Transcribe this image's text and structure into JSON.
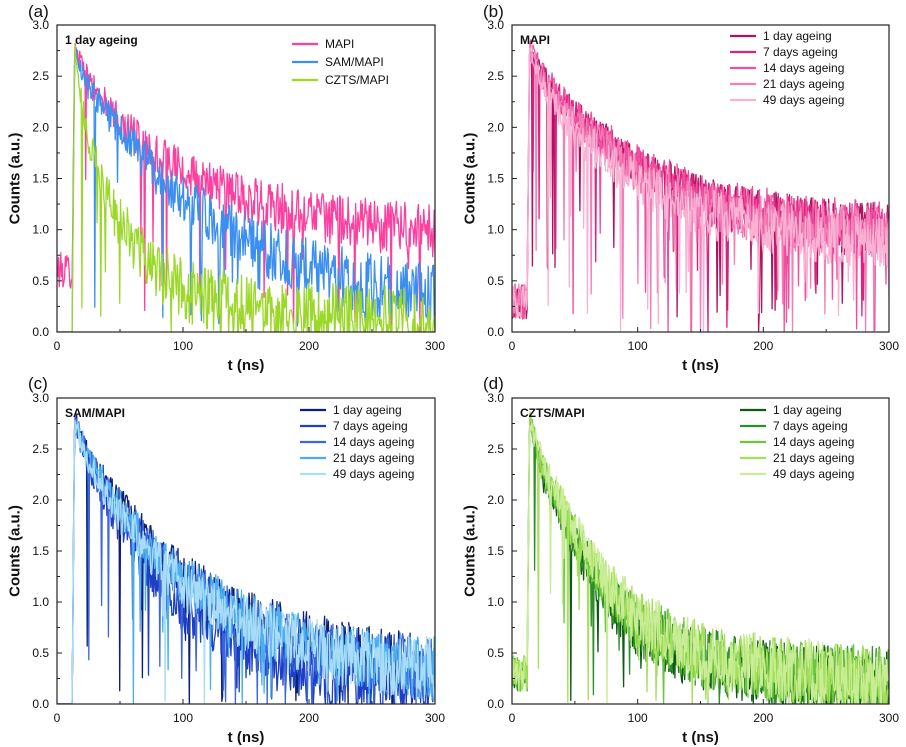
{
  "chart_data": [
    {
      "panel": "(a)",
      "type": "line",
      "inset_title": "1 day ageing",
      "xlabel": "t (ns)",
      "ylabel": "Counts (a.u.)",
      "xlim": [
        0,
        300
      ],
      "ylim": [
        0,
        3.0
      ],
      "xticks": [
        "0",
        "100",
        "200",
        "300"
      ],
      "yticks": [
        "0.0",
        "0.5",
        "1.0",
        "1.5",
        "2.0",
        "2.5",
        "3.0"
      ],
      "legend_position": "top-right",
      "series": [
        {
          "name": "MAPI",
          "color": "#ff3f9f",
          "x": [
            0,
            12,
            14,
            25,
            50,
            75,
            100,
            150,
            200,
            250,
            300
          ],
          "y": [
            0.6,
            0.6,
            2.78,
            2.45,
            2.05,
            1.78,
            1.57,
            1.3,
            1.14,
            1.04,
            0.98
          ]
        },
        {
          "name": "SAM/MAPI",
          "color": "#3a8ff0",
          "x": [
            0,
            12,
            14,
            25,
            50,
            75,
            100,
            150,
            200,
            250,
            300
          ],
          "y": [
            0.0,
            0.0,
            2.78,
            2.4,
            1.95,
            1.6,
            1.3,
            0.9,
            0.62,
            0.45,
            0.35
          ]
        },
        {
          "name": "CZTS/MAPI",
          "color": "#9bd82a",
          "x": [
            0,
            12,
            14,
            20,
            30,
            50,
            75,
            100,
            150,
            200,
            250,
            300
          ],
          "y": [
            0.0,
            0.0,
            2.78,
            2.2,
            1.65,
            1.05,
            0.65,
            0.42,
            0.22,
            0.15,
            0.12,
            0.1
          ]
        }
      ]
    },
    {
      "panel": "(b)",
      "type": "line",
      "inset_title": "MAPI",
      "xlabel": "t (ns)",
      "ylabel": "Counts (a.u.)",
      "xlim": [
        0,
        300
      ],
      "ylim": [
        0,
        3.0
      ],
      "xticks": [
        "0",
        "100",
        "200",
        "300"
      ],
      "yticks": [
        "0.0",
        "0.5",
        "1.0",
        "1.5",
        "2.0",
        "2.5",
        "3.0"
      ],
      "legend_position": "top-right",
      "series": [
        {
          "name": "1 day ageing",
          "color": "#b0125f",
          "x": [
            0,
            12,
            14,
            25,
            50,
            100,
            150,
            200,
            250,
            300
          ],
          "y": [
            0.3,
            0.3,
            2.78,
            2.5,
            2.1,
            1.6,
            1.3,
            1.15,
            1.05,
            1.0
          ]
        },
        {
          "name": "7 days ageing",
          "color": "#e0207f",
          "x": [
            0,
            12,
            14,
            25,
            50,
            100,
            150,
            200,
            250,
            300
          ],
          "y": [
            0.3,
            0.3,
            2.78,
            2.48,
            2.08,
            1.58,
            1.28,
            1.13,
            1.03,
            0.98
          ]
        },
        {
          "name": "14 days ageing",
          "color": "#ef4f9f",
          "x": [
            0,
            12,
            14,
            25,
            50,
            100,
            150,
            200,
            250,
            300
          ],
          "y": [
            0.3,
            0.3,
            2.78,
            2.5,
            2.12,
            1.62,
            1.32,
            1.17,
            1.07,
            1.01
          ]
        },
        {
          "name": "21 days ageing",
          "color": "#f57eb8",
          "x": [
            0,
            12,
            14,
            25,
            50,
            100,
            150,
            200,
            250,
            300
          ],
          "y": [
            0.3,
            0.3,
            2.78,
            2.45,
            2.05,
            1.55,
            1.25,
            1.1,
            1.0,
            0.95
          ]
        },
        {
          "name": "49 days ageing",
          "color": "#f9b2d4",
          "x": [
            0,
            12,
            14,
            25,
            50,
            100,
            150,
            200,
            250,
            300
          ],
          "y": [
            0.3,
            0.3,
            2.78,
            2.4,
            1.95,
            1.45,
            1.17,
            1.02,
            0.93,
            0.88
          ]
        }
      ]
    },
    {
      "panel": "(c)",
      "type": "line",
      "inset_title": "SAM/MAPI",
      "xlabel": "t (ns)",
      "ylabel": "Counts (a.u.)",
      "xlim": [
        0,
        300
      ],
      "ylim": [
        0,
        3.0
      ],
      "xticks": [
        "0",
        "100",
        "200",
        "300"
      ],
      "yticks": [
        "0.0",
        "0.5",
        "1.0",
        "1.5",
        "2.0",
        "2.5",
        "3.0"
      ],
      "legend_position": "top-right",
      "series": [
        {
          "name": "1 day ageing",
          "color": "#0b1f7a",
          "x": [
            0,
            12,
            14,
            25,
            50,
            75,
            100,
            150,
            200,
            250,
            300
          ],
          "y": [
            0.0,
            0.0,
            2.78,
            2.4,
            1.95,
            1.55,
            1.25,
            0.85,
            0.6,
            0.45,
            0.35
          ]
        },
        {
          "name": "7 days ageing",
          "color": "#1c3fc4",
          "x": [
            0,
            12,
            14,
            25,
            50,
            75,
            100,
            150,
            200,
            250,
            300
          ],
          "y": [
            0.0,
            0.0,
            2.78,
            2.3,
            1.75,
            1.3,
            0.95,
            0.55,
            0.3,
            0.2,
            0.15
          ]
        },
        {
          "name": "14 days ageing",
          "color": "#3a66e0",
          "x": [
            0,
            12,
            14,
            25,
            50,
            75,
            100,
            150,
            200,
            250,
            300
          ],
          "y": [
            0.0,
            0.0,
            2.78,
            2.38,
            1.9,
            1.5,
            1.2,
            0.8,
            0.55,
            0.42,
            0.33
          ]
        },
        {
          "name": "21 days ageing",
          "color": "#4aaef0",
          "x": [
            0,
            12,
            14,
            25,
            50,
            75,
            100,
            150,
            200,
            250,
            300
          ],
          "y": [
            0.0,
            0.0,
            2.78,
            2.4,
            1.93,
            1.53,
            1.22,
            0.82,
            0.58,
            0.44,
            0.34
          ]
        },
        {
          "name": "49 days ageing",
          "color": "#a8dcf7",
          "x": [
            0,
            12,
            14,
            25,
            50,
            75,
            100,
            150,
            200,
            250,
            300
          ],
          "y": [
            0.0,
            0.0,
            2.78,
            2.35,
            1.85,
            1.45,
            1.15,
            0.78,
            0.55,
            0.42,
            0.33
          ]
        }
      ]
    },
    {
      "panel": "(d)",
      "type": "line",
      "inset_title": "CZTS/MAPI",
      "xlabel": "t (ns)",
      "ylabel": "Counts (a.u.)",
      "xlim": [
        0,
        300
      ],
      "ylim": [
        0,
        3.0
      ],
      "xticks": [
        "0",
        "100",
        "200",
        "300"
      ],
      "yticks": [
        "0.0",
        "0.5",
        "1.0",
        "1.5",
        "2.0",
        "2.5",
        "3.0"
      ],
      "legend_position": "top-right",
      "series": [
        {
          "name": "1 day ageing",
          "color": "#0d5a12",
          "x": [
            0,
            12,
            14,
            25,
            50,
            75,
            100,
            150,
            200,
            250,
            300
          ],
          "y": [
            0.3,
            0.3,
            2.78,
            2.2,
            1.55,
            1.05,
            0.72,
            0.42,
            0.3,
            0.25,
            0.22
          ]
        },
        {
          "name": "7 days ageing",
          "color": "#2e8f2a",
          "x": [
            0,
            12,
            14,
            25,
            50,
            75,
            100,
            150,
            200,
            250,
            300
          ],
          "y": [
            0.3,
            0.3,
            2.78,
            2.25,
            1.6,
            1.1,
            0.76,
            0.45,
            0.32,
            0.26,
            0.23
          ]
        },
        {
          "name": "14 days ageing",
          "color": "#6cc63a",
          "x": [
            0,
            12,
            14,
            25,
            50,
            75,
            100,
            150,
            200,
            250,
            300
          ],
          "y": [
            0.3,
            0.3,
            2.78,
            2.28,
            1.65,
            1.15,
            0.8,
            0.48,
            0.34,
            0.28,
            0.24
          ]
        },
        {
          "name": "21 days ageing",
          "color": "#a4e05a",
          "x": [
            0,
            12,
            14,
            25,
            50,
            75,
            100,
            150,
            200,
            250,
            300
          ],
          "y": [
            0.3,
            0.3,
            2.78,
            2.3,
            1.68,
            1.18,
            0.82,
            0.5,
            0.36,
            0.29,
            0.25
          ]
        },
        {
          "name": "49 days ageing",
          "color": "#c9ec96",
          "x": [
            0,
            12,
            14,
            25,
            50,
            75,
            100,
            150,
            200,
            250,
            300
          ],
          "y": [
            0.3,
            0.3,
            2.78,
            2.32,
            1.7,
            1.2,
            0.85,
            0.52,
            0.37,
            0.3,
            0.26
          ]
        }
      ]
    }
  ]
}
